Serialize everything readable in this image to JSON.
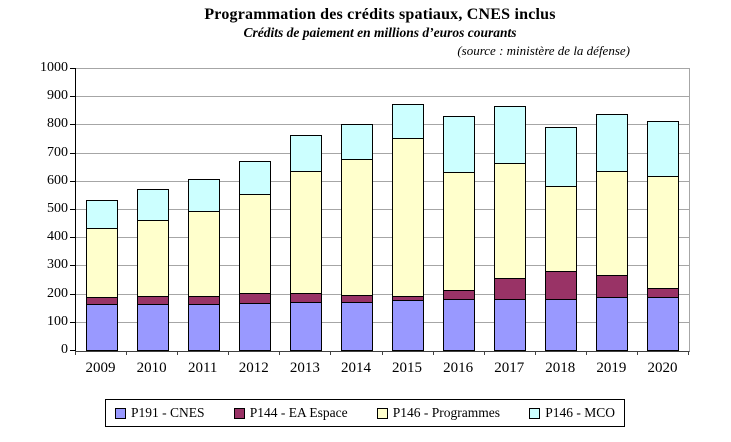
{
  "chart_data": {
    "type": "bar",
    "stacked": true,
    "title": "Programmation des crédits spatiaux, CNES inclus",
    "subtitle": "Crédits de paiement en millions d’euros courants",
    "source": "(source : ministère de la défense)",
    "xlabel": "",
    "ylabel": "",
    "ylim": [
      0,
      1000
    ],
    "yticks": [
      0,
      100,
      200,
      300,
      400,
      500,
      600,
      700,
      800,
      900,
      1000
    ],
    "grid": true,
    "legend_position": "bottom",
    "categories": [
      "2009",
      "2010",
      "2011",
      "2012",
      "2013",
      "2014",
      "2015",
      "2016",
      "2017",
      "2018",
      "2019",
      "2020"
    ],
    "series": [
      {
        "key": "p191-cnes",
        "name": "P191 - CNES",
        "color": "#9999FF",
        "values": [
          165,
          165,
          165,
          170,
          175,
          175,
          180,
          185,
          185,
          185,
          190,
          190
        ]
      },
      {
        "key": "p144-ea-espace",
        "name": "P144 - EA Espace",
        "color": "#993366",
        "values": [
          25,
          30,
          30,
          35,
          30,
          25,
          15,
          30,
          75,
          100,
          80,
          35
        ]
      },
      {
        "key": "p146-programmes",
        "name": "P146 - Programmes",
        "color": "#FFFFCC",
        "values": [
          245,
          270,
          300,
          350,
          435,
          480,
          560,
          420,
          405,
          300,
          370,
          395
        ]
      },
      {
        "key": "p146-mco",
        "name": "P146 - MCO",
        "color": "#CCFFFF",
        "values": [
          100,
          110,
          115,
          120,
          125,
          125,
          120,
          200,
          205,
          210,
          200,
          195
        ]
      }
    ],
    "totals": [
      535,
      575,
      610,
      675,
      765,
      805,
      875,
      835,
      870,
      795,
      840,
      815
    ]
  },
  "colors": {
    "gridline": "#A6A6A6",
    "axis": "#000000",
    "background": "#FFFFFF"
  }
}
